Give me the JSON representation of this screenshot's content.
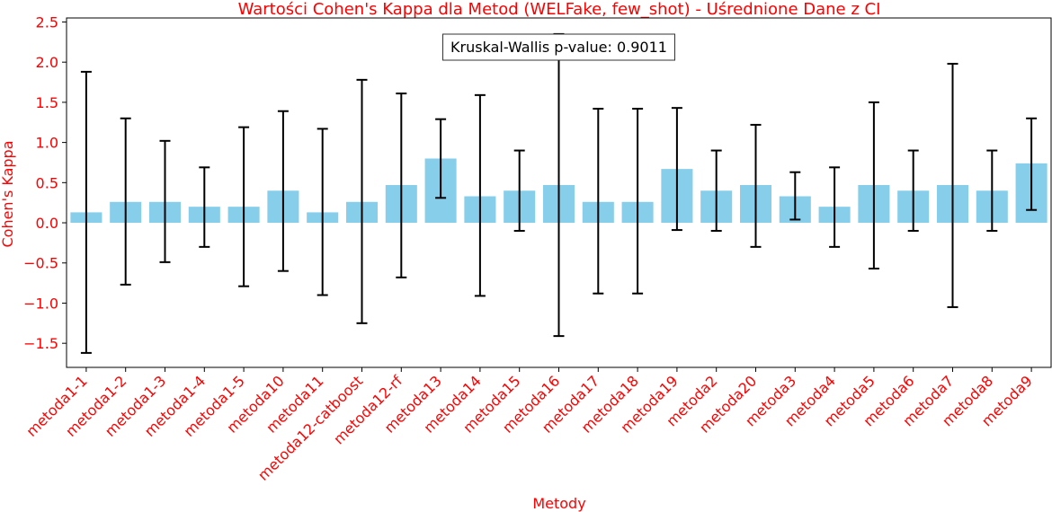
{
  "chart_data": {
    "type": "bar",
    "title": "Wartości Cohen's Kappa dla Metod (WELFake, few_shot) - Uśrednione Dane z CI",
    "xlabel": "Metody",
    "ylabel": "Cohen's Kappa",
    "ylim": [
      -1.8,
      2.55
    ],
    "yticks": [
      -1.5,
      -1.0,
      -0.5,
      0.0,
      0.5,
      1.0,
      1.5,
      2.0,
      2.5
    ],
    "ytick_labels": [
      "−1.5",
      "−1.0",
      "−0.5",
      "0.0",
      "0.5",
      "1.0",
      "1.5",
      "2.0",
      "2.5"
    ],
    "grid": false,
    "categories": [
      "metoda1-1",
      "metoda1-2",
      "metoda1-3",
      "metoda1-4",
      "metoda1-5",
      "metoda10",
      "metoda11",
      "metoda12-catboost",
      "metoda12-rf",
      "metoda13",
      "metoda14",
      "metoda15",
      "metoda16",
      "metoda17",
      "metoda18",
      "metoda19",
      "metoda2",
      "metoda20",
      "metoda3",
      "metoda4",
      "metoda5",
      "metoda6",
      "metoda7",
      "metoda8",
      "metoda9"
    ],
    "values": [
      0.13,
      0.26,
      0.26,
      0.2,
      0.2,
      0.4,
      0.13,
      0.26,
      0.47,
      0.8,
      0.33,
      0.4,
      0.47,
      0.26,
      0.26,
      0.67,
      0.4,
      0.47,
      0.33,
      0.2,
      0.47,
      0.4,
      0.47,
      0.4,
      0.74
    ],
    "ci_lower": [
      -1.62,
      -0.77,
      -0.49,
      -0.3,
      -0.79,
      -0.6,
      -0.9,
      -1.25,
      -0.68,
      0.31,
      -0.91,
      -0.1,
      -1.41,
      -0.88,
      -0.88,
      -0.09,
      -0.1,
      -0.3,
      0.04,
      -0.3,
      -0.57,
      -0.1,
      -1.05,
      -0.1,
      0.16
    ],
    "ci_upper": [
      1.88,
      1.3,
      1.02,
      0.69,
      1.19,
      1.39,
      1.17,
      1.78,
      1.61,
      1.29,
      1.59,
      0.9,
      2.35,
      1.42,
      1.42,
      1.43,
      0.9,
      1.22,
      0.63,
      0.69,
      1.5,
      0.9,
      1.98,
      0.9,
      1.3
    ],
    "bar_color": "#87ceeb",
    "text_color": "#ff0000",
    "annotation": "Kruskal-Wallis p-value: 0.9011"
  }
}
